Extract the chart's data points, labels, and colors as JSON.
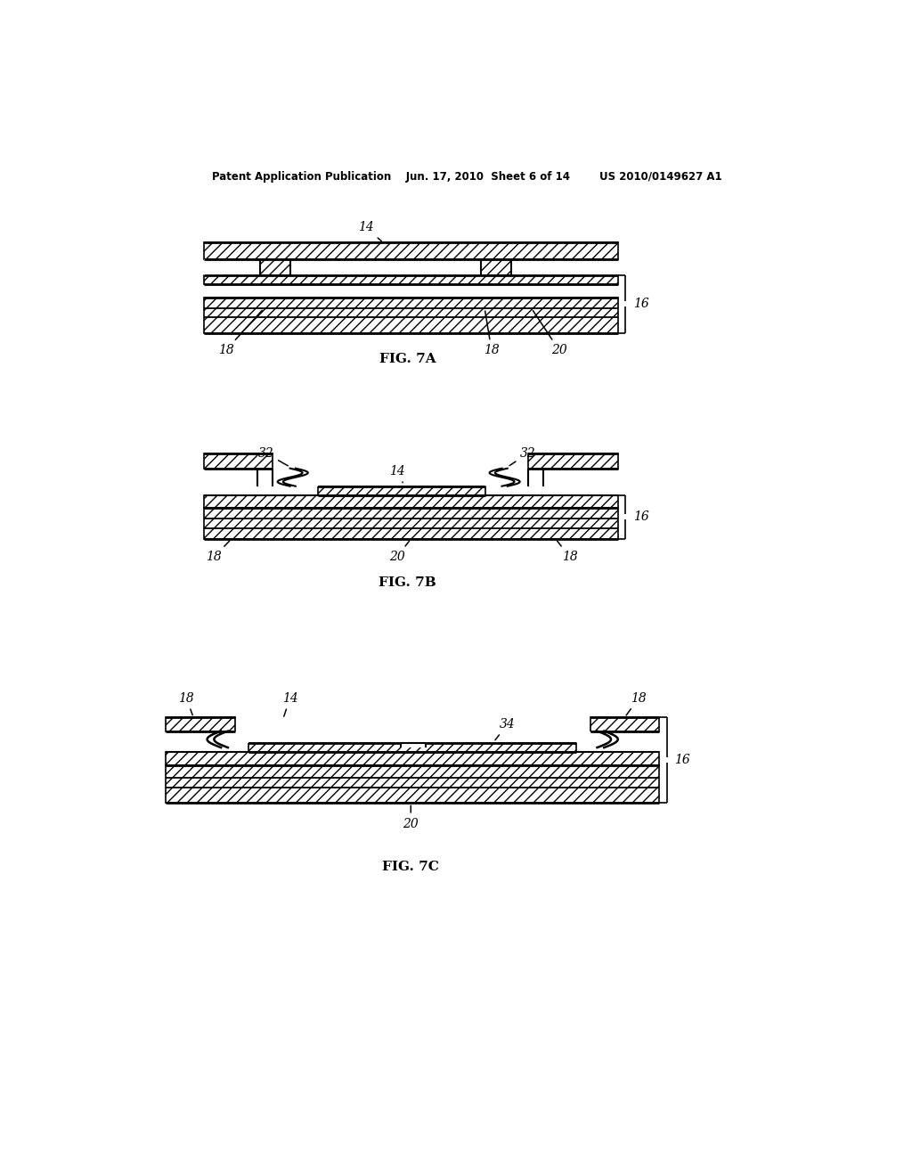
{
  "bg_color": "#ffffff",
  "line_color": "#000000",
  "title_text": "Patent Application Publication    Jun. 17, 2010  Sheet 6 of 14        US 2010/0149627 A1",
  "fig7a_label": "FIG. 7A",
  "fig7b_label": "FIG. 7B",
  "fig7c_label": "FIG. 7C"
}
